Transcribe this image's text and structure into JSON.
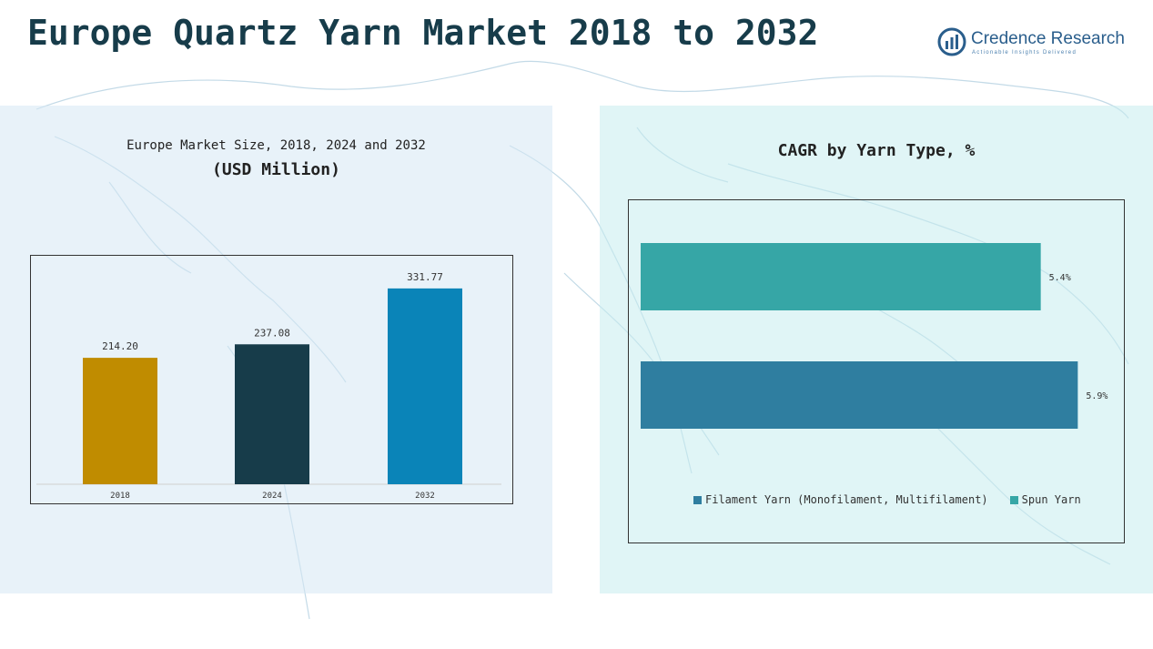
{
  "header": {
    "title": "Europe Quartz Yarn Market 2018 to 2032",
    "brand_name": "Credence Research",
    "brand_tagline": "Actionable Insights Delivered"
  },
  "colors": {
    "title": "#173c4a",
    "bar_2018": "#c08c00",
    "bar_2024": "#173c4a",
    "bar_2032": "#0a84b8",
    "filament": "#2f7ea0",
    "spun": "#36a6a6"
  },
  "chart_data": [
    {
      "type": "bar",
      "title": "Europe Market Size, 2018, 2024 and 2032",
      "subtitle": "(USD Million)",
      "categories": [
        "2018",
        "2024",
        "2032"
      ],
      "values": [
        214.2,
        237.08,
        331.77
      ],
      "labels": [
        "214.20",
        "237.08",
        "331.77"
      ],
      "ylim": [
        0,
        360
      ],
      "grid": false
    },
    {
      "type": "bar",
      "orientation": "horizontal",
      "title": "CAGR by Yarn Type, %",
      "categories": [
        "Spun Yarn",
        "Filament Yarn (Monofilament, Multifilament)"
      ],
      "values": [
        5.4,
        5.9
      ],
      "labels": [
        "5.4%",
        "5.9%"
      ],
      "xlim": [
        0,
        6.35
      ],
      "legend": {
        "position": "bottom",
        "entries": [
          "Filament Yarn (Monofilament, Multifilament)",
          "Spun Yarn"
        ]
      }
    }
  ]
}
